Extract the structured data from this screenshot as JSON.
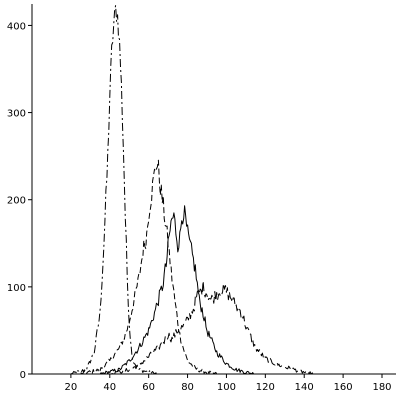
{
  "chart_data": {
    "type": "line",
    "title": "",
    "xlabel": "",
    "ylabel": "",
    "xlim": [
      0,
      180
    ],
    "ylim": [
      0,
      420
    ],
    "grid": false,
    "x_ticks": [
      20,
      40,
      60,
      80,
      100,
      120,
      140,
      160,
      180
    ],
    "x_tick_labels": [
      "20",
      "40",
      "60",
      "80",
      "100",
      "120",
      "140",
      "160",
      "180"
    ],
    "y_ticks": [
      0,
      100,
      200,
      300,
      400
    ],
    "y_tick_labels": [
      "0",
      "100",
      "200",
      "300",
      "400"
    ],
    "colors": {
      "series": "#000000",
      "axes": "#000000"
    },
    "series": [
      {
        "style": "dash-dot",
        "x": [
          20,
          28,
          32,
          35,
          37,
          39,
          40,
          41,
          42,
          43,
          44,
          45,
          46,
          47,
          48,
          49,
          50,
          51,
          52,
          55,
          60,
          65
        ],
        "y": [
          0,
          5,
          25,
          70,
          150,
          250,
          320,
          370,
          400,
          418,
          410,
          380,
          330,
          260,
          180,
          110,
          60,
          30,
          15,
          5,
          2,
          0
        ]
      },
      {
        "style": "dashed",
        "x": [
          25,
          35,
          40,
          45,
          48,
          50,
          52,
          55,
          57,
          59,
          60,
          62,
          63,
          64,
          65,
          66,
          67,
          68,
          70,
          72,
          74,
          76,
          78,
          80,
          85,
          90,
          95
        ],
        "y": [
          0,
          5,
          15,
          30,
          45,
          60,
          80,
          110,
          140,
          160,
          185,
          215,
          230,
          242,
          235,
          215,
          200,
          185,
          150,
          110,
          75,
          45,
          28,
          15,
          5,
          2,
          0
        ]
      },
      {
        "style": "solid",
        "x": [
          35,
          45,
          50,
          55,
          60,
          63,
          65,
          67,
          69,
          70,
          71,
          72,
          73,
          74,
          75,
          76,
          77,
          78,
          79,
          80,
          82,
          84,
          86,
          88,
          90,
          95,
          100,
          105,
          110,
          115
        ],
        "y": [
          0,
          5,
          15,
          30,
          50,
          70,
          85,
          100,
          125,
          145,
          165,
          178,
          180,
          165,
          150,
          155,
          180,
          188,
          175,
          160,
          140,
          120,
          85,
          70,
          50,
          25,
          12,
          5,
          2,
          0
        ]
      },
      {
        "style": "long-dash",
        "x": [
          40,
          50,
          55,
          60,
          65,
          68,
          70,
          72,
          75,
          78,
          80,
          83,
          85,
          87,
          88,
          90,
          92,
          95,
          98,
          100,
          103,
          105,
          108,
          110,
          112,
          115,
          120,
          125,
          130,
          135,
          140,
          145
        ],
        "y": [
          0,
          5,
          10,
          20,
          30,
          38,
          45,
          40,
          50,
          55,
          62,
          75,
          90,
          95,
          100,
          92,
          85,
          92,
          97,
          95,
          85,
          78,
          70,
          55,
          45,
          30,
          18,
          12,
          8,
          5,
          2,
          0
        ]
      }
    ]
  }
}
